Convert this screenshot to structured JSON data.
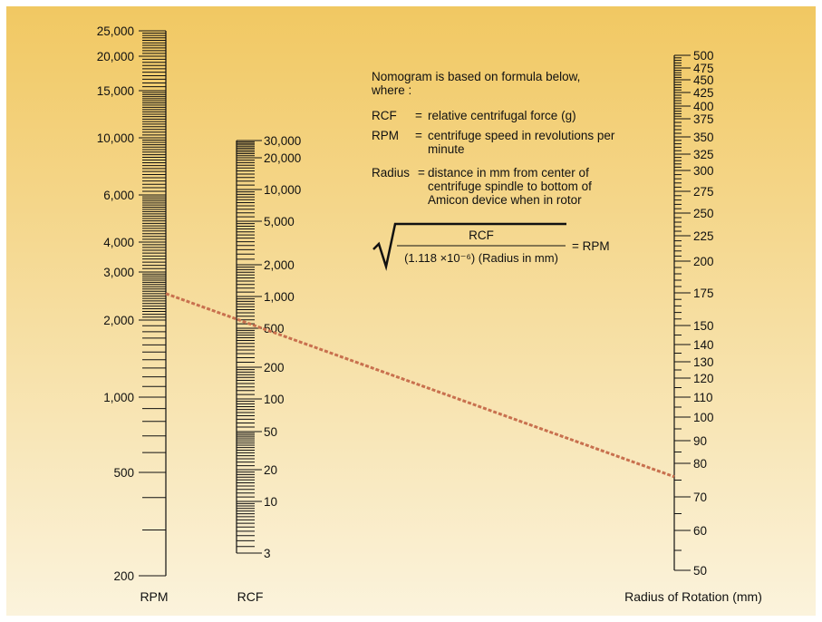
{
  "background": {
    "top_color": "#f1c862",
    "bottom_color": "#fbf3dc",
    "frame_color": "#ffffff"
  },
  "line_color": "#c8704e",
  "axes": {
    "rpm": {
      "name": "RPM",
      "labels": [
        "25,000",
        "20,000",
        "15,000",
        "10,000",
        "6,000",
        "4,000",
        "3,000",
        "2,000",
        "1,000",
        "500",
        "200"
      ],
      "label_values": [
        25000,
        20000,
        15000,
        10000,
        6000,
        4000,
        3000,
        2000,
        1000,
        500,
        200
      ]
    },
    "rcf": {
      "name": "RCF",
      "labels": [
        "30,000",
        "20,000",
        "10,000",
        "5,000",
        "2,000",
        "1,000",
        "500",
        "200",
        "100",
        "50",
        "20",
        "10",
        "3"
      ],
      "label_values": [
        30000,
        20000,
        10000,
        5000,
        2000,
        1000,
        500,
        200,
        100,
        50,
        20,
        10,
        3
      ]
    },
    "radius": {
      "name": "Radius of Rotation (mm)",
      "labels": [
        "500",
        "475",
        "450",
        "425",
        "400",
        "375",
        "350",
        "325",
        "300",
        "275",
        "250",
        "225",
        "200",
        "175",
        "150",
        "140",
        "130",
        "120",
        "110",
        "100",
        "90",
        "80",
        "70",
        "60",
        "50"
      ],
      "label_values": [
        500,
        475,
        450,
        425,
        400,
        375,
        350,
        325,
        300,
        275,
        250,
        225,
        200,
        175,
        150,
        140,
        130,
        120,
        110,
        100,
        90,
        80,
        70,
        60,
        50
      ]
    }
  },
  "example_line": {
    "rpm": 2500,
    "rcf": 600,
    "radius": 76
  },
  "notes": {
    "intro": "Nomogram is based on formula below, where :",
    "defs": [
      {
        "term": "RCF",
        "eq": "=",
        "desc": "relative centrifugal force (g)"
      },
      {
        "term": "RPM",
        "eq": "=",
        "desc": "centrifuge speed in revolutions per minute"
      },
      {
        "term": "Radius",
        "eq": "=",
        "desc": "distance in mm from center of centrifuge spindle to bottom of Amicon device when in rotor"
      }
    ],
    "formula": {
      "numerator": "RCF",
      "denominator": "(1.118 ×10⁻⁶) (Radius in mm)",
      "result": "= RPM"
    }
  }
}
